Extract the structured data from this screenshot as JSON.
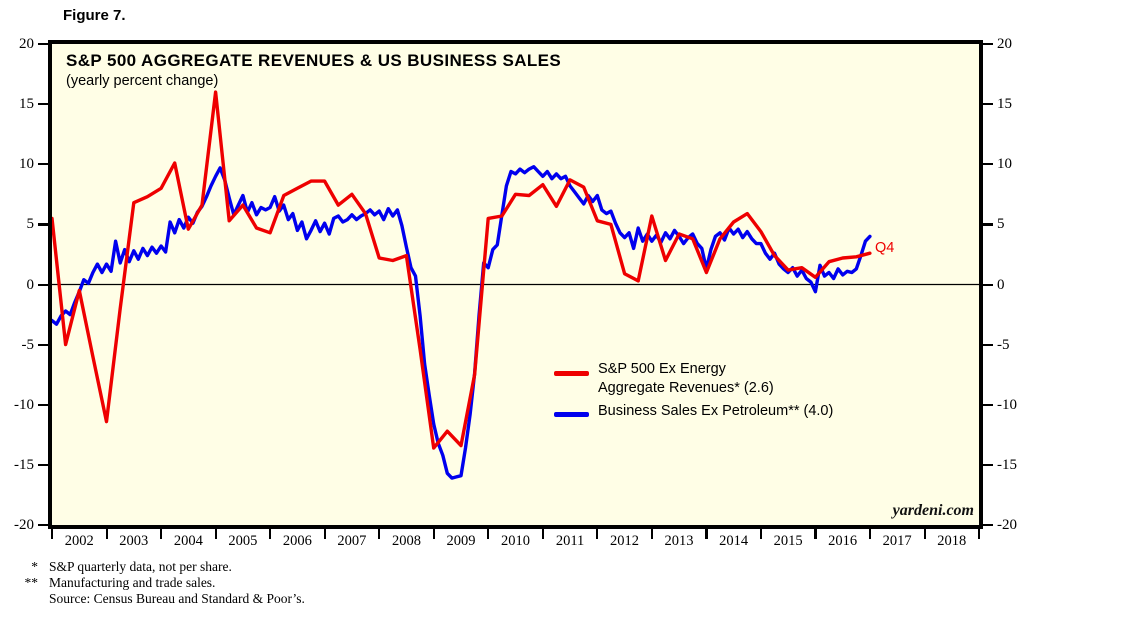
{
  "figure_label": "Figure 7.",
  "title": "S&P 500 AGGREGATE REVENUES & US BUSINESS SALES",
  "subtitle": "(yearly percent change)",
  "annotations": {
    "q4_label": "Q4",
    "watermark": "yardeni.com"
  },
  "legend": {
    "red": {
      "line1": "S&P 500 Ex Energy",
      "line2": "Aggregate Revenues* (2.6)"
    },
    "blue": {
      "line1": "Business Sales Ex Petroleum** (4.0)"
    }
  },
  "footnotes": [
    {
      "marker": "*",
      "text": "S&P quarterly data, not per share."
    },
    {
      "marker": "**",
      "text": "Manufacturing and trade sales."
    },
    {
      "marker": "",
      "text": "Source: Census Bureau and Standard & Poor’s."
    }
  ],
  "chart_data": {
    "type": "line",
    "title": "S&P 500 AGGREGATE REVENUES & US BUSINESS SALES",
    "subtitle": "(yearly percent change)",
    "plot_bg": "#fffee6",
    "grid": false,
    "zero_line": true,
    "ylim": [
      -20,
      20
    ],
    "y_ticks": [
      20,
      15,
      10,
      5,
      0,
      -5,
      -10,
      -15,
      -20
    ],
    "x_range": [
      2002,
      2019
    ],
    "x_year_labels": [
      "2002",
      "2003",
      "2004",
      "2005",
      "2006",
      "2007",
      "2008",
      "2009",
      "2010",
      "2011",
      "2012",
      "2013",
      "2014",
      "2015",
      "2016",
      "2017",
      "2018"
    ],
    "legend_position": "center-right-below-zero",
    "series": [
      {
        "name": "S&P 500 Ex Energy Aggregate Revenues (quarterly, y/y %)",
        "final_label": "Q4",
        "final_value": 2.6,
        "color": "#ee0000",
        "x_start": 2002.0,
        "x_step": 0.25,
        "values": [
          5.5,
          -5.0,
          -0.5,
          -6.0,
          -11.4,
          -2.0,
          6.8,
          7.3,
          8.0,
          10.1,
          4.6,
          6.6,
          16.0,
          5.3,
          6.6,
          4.7,
          4.3,
          7.4,
          8.0,
          8.6,
          8.6,
          6.6,
          7.5,
          5.9,
          2.2,
          2.0,
          2.4,
          -5.4,
          -13.6,
          -12.2,
          -13.4,
          -7.5,
          5.5,
          5.7,
          7.5,
          7.4,
          8.3,
          6.5,
          8.7,
          8.1,
          5.3,
          5.0,
          0.9,
          0.3,
          5.7,
          2.0,
          4.2,
          3.8,
          1.0,
          3.8,
          5.2,
          5.9,
          4.4,
          2.4,
          1.2,
          1.4,
          0.6,
          1.9,
          2.2,
          2.3,
          2.6
        ]
      },
      {
        "name": "Business Sales Ex Petroleum (monthly, y/y %)",
        "final_value": 4.0,
        "color": "#0000ee",
        "x_start": 2002.0,
        "x_step": 0.0833333,
        "values": [
          -3.0,
          -3.3,
          -2.6,
          -2.2,
          -2.5,
          -1.5,
          -0.6,
          0.4,
          0.1,
          1.0,
          1.7,
          1.0,
          1.7,
          1.1,
          3.6,
          1.8,
          2.9,
          1.9,
          2.8,
          2.1,
          3.0,
          2.4,
          3.1,
          2.6,
          3.2,
          2.7,
          5.2,
          4.3,
          5.4,
          4.7,
          5.6,
          5.1,
          6.0,
          6.5,
          7.3,
          8.2,
          9.0,
          9.7,
          8.7,
          7.2,
          5.8,
          6.6,
          7.4,
          6.0,
          6.8,
          5.8,
          6.4,
          6.2,
          6.4,
          7.3,
          6.1,
          6.6,
          5.4,
          5.9,
          4.5,
          5.2,
          3.8,
          4.5,
          5.3,
          4.4,
          5.1,
          4.2,
          5.5,
          5.7,
          5.2,
          5.4,
          5.8,
          5.4,
          5.7,
          5.9,
          6.2,
          5.8,
          6.1,
          5.4,
          6.3,
          5.7,
          6.2,
          4.9,
          3.1,
          1.4,
          0.7,
          -2.6,
          -6.6,
          -9.2,
          -11.6,
          -13.2,
          -14.2,
          -15.7,
          -16.1,
          -16.0,
          -15.9,
          -13.6,
          -10.8,
          -7.4,
          -2.5,
          1.8,
          1.4,
          2.9,
          3.3,
          5.8,
          8.2,
          9.4,
          9.2,
          9.6,
          9.3,
          9.6,
          9.8,
          9.4,
          9.0,
          9.4,
          8.8,
          9.2,
          8.8,
          9.0,
          8.2,
          7.7,
          7.2,
          6.7,
          7.4,
          6.9,
          7.4,
          6.2,
          5.9,
          6.1,
          5.1,
          4.3,
          3.9,
          4.3,
          3.0,
          4.7,
          3.6,
          4.2,
          3.6,
          4.1,
          3.5,
          4.3,
          3.8,
          4.5,
          4.0,
          3.4,
          3.9,
          4.2,
          3.4,
          3.0,
          1.3,
          2.9,
          4.0,
          4.3,
          3.7,
          4.7,
          4.2,
          4.6,
          3.9,
          4.4,
          3.8,
          3.4,
          3.4,
          2.6,
          2.1,
          2.6,
          1.7,
          1.3,
          1.0,
          1.4,
          0.7,
          1.2,
          0.5,
          0.2,
          -0.6,
          1.6,
          0.7,
          1.0,
          0.5,
          1.3,
          0.8,
          1.1,
          1.0,
          1.3,
          2.4,
          3.6,
          4.0
        ]
      }
    ]
  }
}
